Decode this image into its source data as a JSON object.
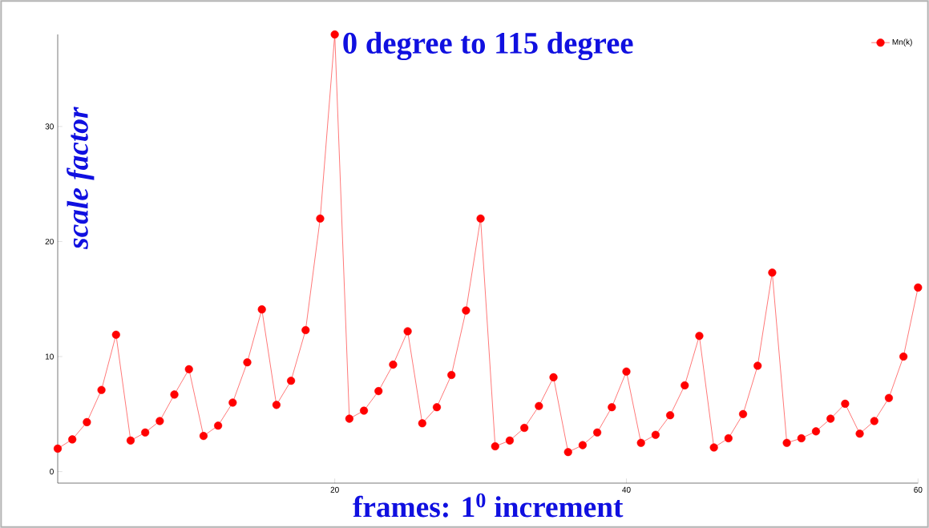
{
  "chart_data": {
    "type": "line",
    "title": "0 degree to 115 degree",
    "xlabel": "frames: 1$^{0}$ increment",
    "ylabel": "scale factor",
    "x": [
      1,
      2,
      3,
      4,
      5,
      6,
      7,
      8,
      9,
      10,
      11,
      12,
      13,
      14,
      15,
      16,
      17,
      18,
      19,
      20,
      21,
      22,
      23,
      24,
      25,
      26,
      27,
      28,
      29,
      30,
      31,
      32,
      33,
      34,
      35,
      36,
      37,
      38,
      39,
      40,
      41,
      42,
      43,
      44,
      45,
      46,
      47,
      48,
      49,
      50,
      51,
      52,
      53,
      54,
      55,
      56,
      57,
      58,
      59,
      60
    ],
    "series": [
      {
        "name": "Mn(k)",
        "color": "#ff0000",
        "values": [
          2.0,
          2.8,
          4.3,
          7.1,
          11.9,
          2.7,
          3.4,
          4.4,
          6.7,
          8.9,
          3.1,
          4.0,
          6.0,
          9.5,
          14.1,
          5.8,
          7.9,
          12.3,
          22.0,
          38.0,
          4.6,
          5.3,
          7.0,
          9.3,
          12.2,
          4.2,
          5.6,
          8.4,
          14.0,
          22.0,
          2.2,
          2.7,
          3.8,
          5.7,
          8.2,
          1.7,
          2.3,
          3.4,
          5.6,
          8.7,
          2.5,
          3.2,
          4.9,
          7.5,
          11.8,
          2.1,
          2.9,
          5.0,
          9.2,
          17.3,
          2.5,
          2.9,
          3.5,
          4.6,
          5.9,
          3.3,
          4.4,
          6.4,
          10.0,
          16.0
        ]
      }
    ],
    "xlim": [
      1,
      60
    ],
    "ylim": [
      -1,
      38
    ],
    "xticks": [
      20,
      40,
      60
    ],
    "yticks": [
      0,
      10,
      20,
      30
    ],
    "legend": "top right",
    "marker": "circle",
    "line_style": "solid",
    "grid": false
  }
}
